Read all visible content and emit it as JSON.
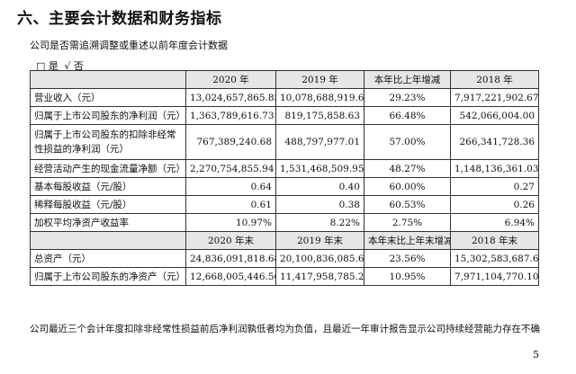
{
  "section_title": "六、主要会计数据和财务指标",
  "restatement_question": "公司是否需追溯调整或重述以前年度会计数据",
  "answer_options": [
    "□ 是",
    "√ 否"
  ],
  "table1": {
    "headers": [
      "",
      "2020 年",
      "2019 年",
      "本年比上年增减",
      "2018 年"
    ],
    "rows": [
      [
        "营业收入（元）",
        "13,024,657,865.85",
        "10,078,688,919.69",
        "29.23%",
        "7,917,221,902.67"
      ],
      [
        "归属于上市公司股东的净利润（元）",
        "1,363,789,616.73",
        "819,175,858.63",
        "66.48%",
        "542,066,004.00"
      ],
      [
        "归属于上市公司股东的扣除非经常性损益的净利润（元）",
        "767,389,240.68",
        "488,797,977.01",
        "57.00%",
        "266,341,728.36"
      ],
      [
        "经营活动产生的现金流量净额（元）",
        "2,270,754,855.94",
        "1,531,468,509.95",
        "48.27%",
        "1,148,136,361.03"
      ],
      [
        "基本每股收益（元/股）",
        "0.64",
        "0.40",
        "60.00%",
        "0.27"
      ],
      [
        "稀释每股收益（元/股）",
        "0.61",
        "0.38",
        "60.53%",
        "0.26"
      ],
      [
        "加权平均净资产收益率",
        "10.97%",
        "8.22%",
        "2.75%",
        "6.94%"
      ]
    ]
  },
  "table2": {
    "headers": [
      "",
      "2020 年末",
      "2019 年末",
      "本年末比上年末增减",
      "2018 年末"
    ],
    "rows": [
      [
        "总资产（元）",
        "24,836,091,818.68",
        "20,100,836,085.61",
        "23.56%",
        "15,302,583,687.64"
      ],
      [
        "归属于上市公司股东的净资产（元）",
        "12,668,005,446.56",
        "11,417,958,785.25",
        "10.95%",
        "7,971,104,770.10"
      ]
    ]
  },
  "footnote": "公司最近三个会计年度扣除非经常性损益前后净利润孰低者均为负值，且最近一年审计报告显示公司持续经营能力存在不确",
  "page_number": "5"
}
